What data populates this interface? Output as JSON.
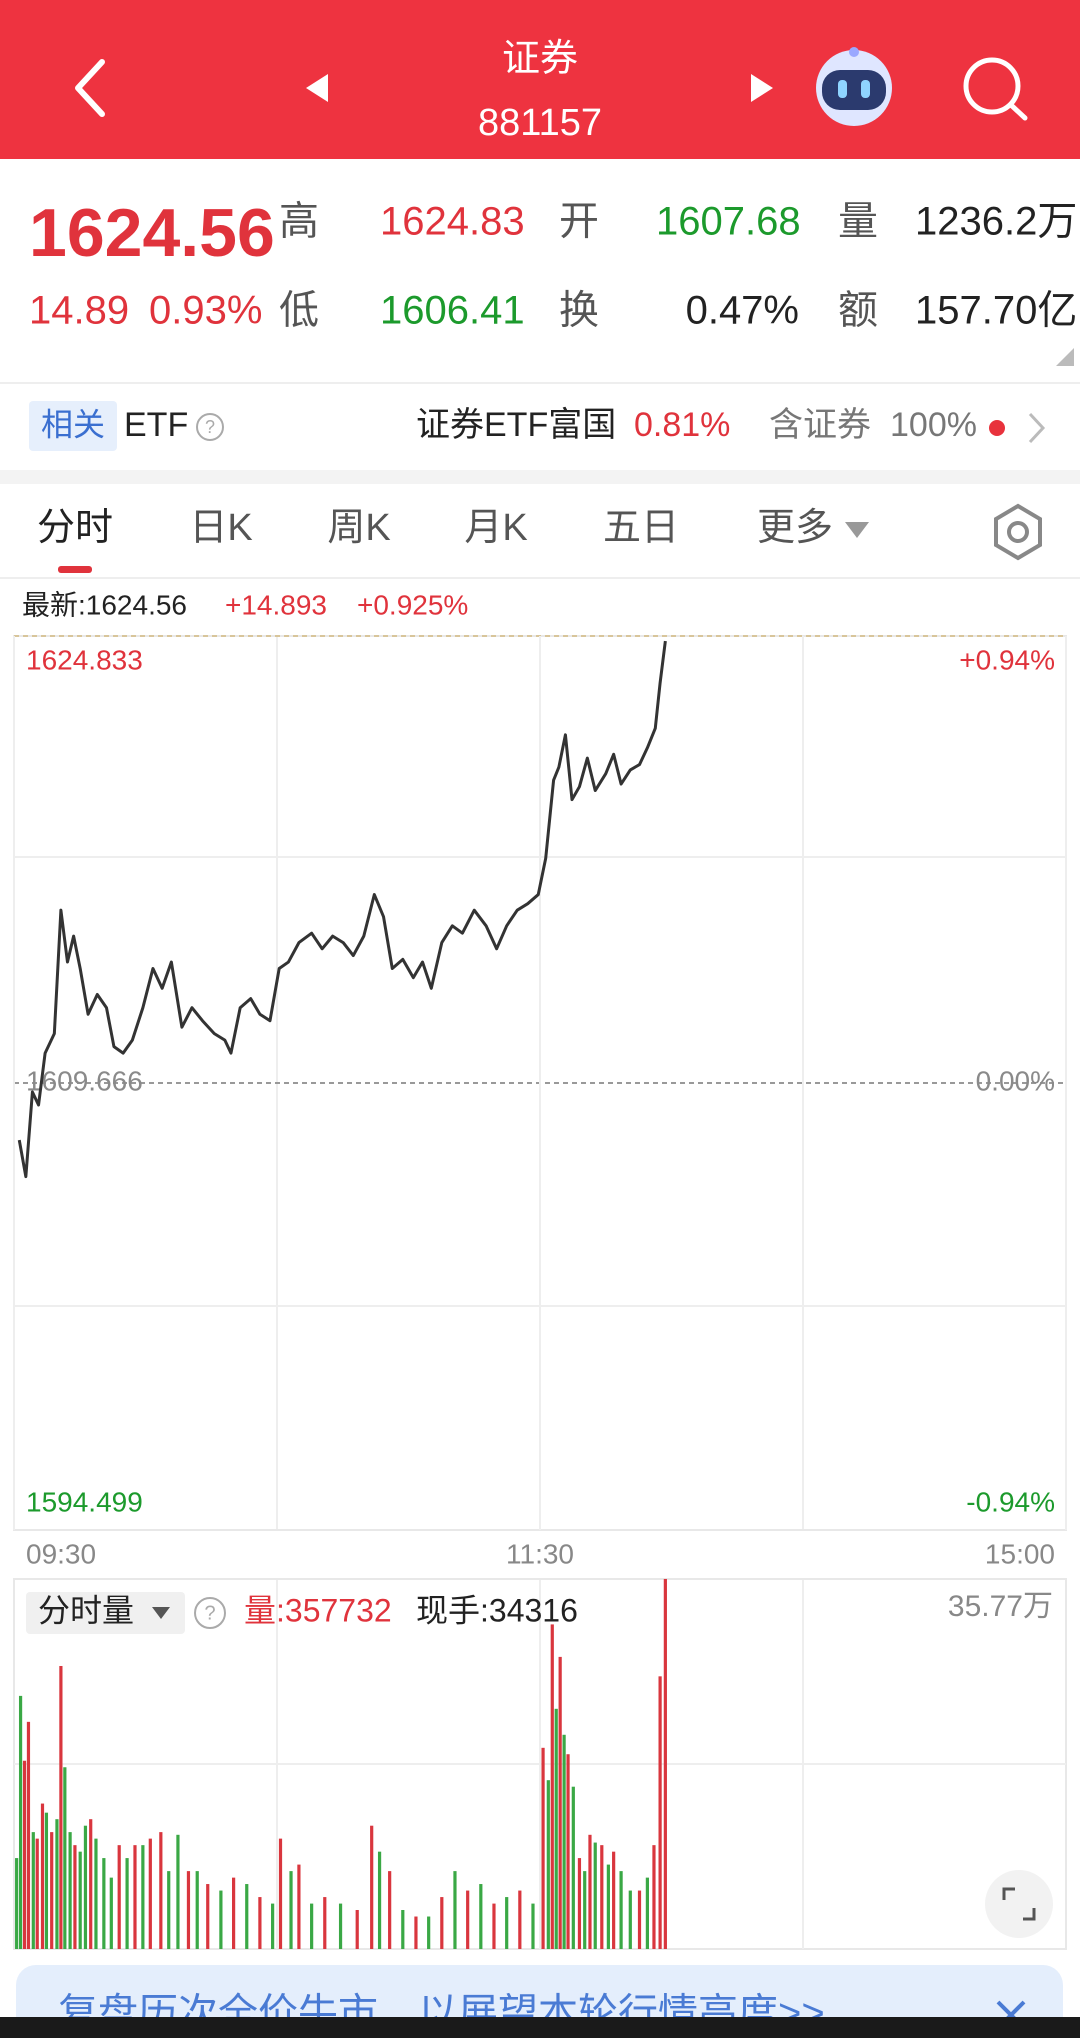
{
  "header": {
    "title": "证券",
    "code": "881157"
  },
  "quote": {
    "price": "1624.56",
    "change": "14.89",
    "change_pct": "0.93%",
    "fields": [
      {
        "label": "高",
        "value": "1624.83"
      },
      {
        "label": "开",
        "value": "1607.68"
      },
      {
        "label": "量",
        "value": "1236.2万"
      },
      {
        "label": "低",
        "value": "1606.41"
      },
      {
        "label": "换",
        "value": "0.47%"
      },
      {
        "label": "额",
        "value": "157.70亿"
      }
    ]
  },
  "related": {
    "tag": "相关",
    "label": "ETF",
    "name": "证券ETF富国",
    "change_pct": "0.81%",
    "holding_label": "含证券",
    "holding_pct": "100%"
  },
  "tabs": [
    "分时",
    "日K",
    "周K",
    "月K",
    "五日",
    "更多"
  ],
  "chart_data": [
    {
      "type": "line",
      "latest": "最新:1624.56",
      "change": "+14.893",
      "change_pct": "+0.925%",
      "color": "#333333",
      "x": [
        1.2,
        2.7,
        4.2,
        5.6,
        7.1,
        9.2,
        10.7,
        12.2,
        13.6,
        15.1,
        16.9,
        19.0,
        21.1,
        22.8,
        24.9,
        27.0,
        29.4,
        31.7,
        33.8,
        35.9,
        38.3,
        40.6,
        43.0,
        45.7,
        48.1,
        49.5,
        51.6,
        54.0,
        56.1,
        58.4,
        60.5,
        62.6,
        65.0,
        67.9,
        70.3,
        72.7,
        75.1,
        77.4,
        79.8,
        82.2,
        84.3,
        86.3,
        88.7,
        91.1,
        93.2,
        95.2,
        97.6,
        100.0,
        102.3,
        105.0,
        107.7,
        110.1,
        112.4,
        114.8,
        117.2,
        119.6,
        121.3,
        123.1,
        124.3,
        125.8,
        127.3,
        129.0,
        130.8,
        132.6,
        135.0,
        136.8,
        138.5,
        140.6,
        142.7,
        144.5,
        146.3,
        147.4,
        148.6
      ],
      "values": [
        1607.73,
        1606.49,
        1609.36,
        1608.92,
        1610.68,
        1611.34,
        1615.53,
        1613.77,
        1614.65,
        1613.55,
        1612.0,
        1612.67,
        1612.22,
        1610.9,
        1610.68,
        1611.12,
        1612.22,
        1613.55,
        1612.88,
        1613.77,
        1611.56,
        1612.22,
        1611.78,
        1611.34,
        1611.12,
        1610.68,
        1612.22,
        1612.53,
        1612.0,
        1611.78,
        1613.55,
        1613.77,
        1614.43,
        1614.75,
        1614.22,
        1614.65,
        1614.43,
        1613.99,
        1614.65,
        1616.06,
        1615.31,
        1613.55,
        1613.86,
        1613.24,
        1613.77,
        1612.88,
        1614.43,
        1615.0,
        1614.75,
        1615.53,
        1615.0,
        1614.22,
        1615.0,
        1615.53,
        1615.75,
        1616.06,
        1617.29,
        1619.94,
        1620.38,
        1621.48,
        1619.28,
        1619.72,
        1620.69,
        1619.59,
        1620.16,
        1620.82,
        1619.81,
        1620.29,
        1620.47,
        1621.04,
        1621.7,
        1623.24,
        1624.66
      ],
      "xlim": [
        0,
        240
      ],
      "xticks": [
        {
          "value": 0,
          "label": "09:30"
        },
        {
          "value": 120,
          "label": "11:30"
        },
        {
          "value": 240,
          "label": "15:00"
        }
      ],
      "ylim": [
        1594.499,
        1624.833
      ],
      "yticks": [
        1624.833,
        1609.666,
        1594.499
      ],
      "y2lim": [
        -0.94,
        0.94
      ],
      "y2ticks": [
        {
          "value": 0.94,
          "label": "+0.94%"
        },
        {
          "value": 0,
          "label": "0.00%"
        },
        {
          "value": -0.94,
          "label": "-0.94%"
        }
      ],
      "tick_colors": [
        "#e0333c",
        "#8a8a8a",
        "#1c9a2c"
      ]
    },
    {
      "type": "bar",
      "title": "分时量",
      "volume_label": "量:357732",
      "hand_label": "现手:34316",
      "up_color": "#d9363e",
      "down_color": "#3aa845",
      "x": [
        0.6,
        1.5,
        2.4,
        3.3,
        4.4,
        5.3,
        6.5,
        7.4,
        8.6,
        9.8,
        10.7,
        11.6,
        12.8,
        13.9,
        15.1,
        16.3,
        17.5,
        18.7,
        20.5,
        22.2,
        24.0,
        25.8,
        27.6,
        29.4,
        31.1,
        33.5,
        35.3,
        37.4,
        39.8,
        41.8,
        44.2,
        47.2,
        50.1,
        53.1,
        56.1,
        59.0,
        60.8,
        63.2,
        65.0,
        67.9,
        70.9,
        74.5,
        78.3,
        81.6,
        83.4,
        85.7,
        88.7,
        91.7,
        94.6,
        97.6,
        100.6,
        103.5,
        106.5,
        109.5,
        112.4,
        115.4,
        118.4,
        120.7,
        121.9,
        122.8,
        123.7,
        124.6,
        125.5,
        126.4,
        127.6,
        129.0,
        130.2,
        131.4,
        132.6,
        134.1,
        135.6,
        136.8,
        138.5,
        140.6,
        142.7,
        144.5,
        146.0,
        147.4,
        148.6
      ],
      "values": [
        87900,
        244700,
        182000,
        219600,
        113000,
        106700,
        140600,
        131800,
        113000,
        125500,
        273600,
        175700,
        113000,
        100400,
        94100,
        119200,
        125500,
        106700,
        87900,
        69000,
        100400,
        87900,
        100400,
        100400,
        106700,
        113000,
        75300,
        110400,
        75300,
        75300,
        62800,
        56500,
        69000,
        62800,
        50200,
        43900,
        106700,
        75300,
        81600,
        43900,
        50200,
        43900,
        37700,
        119200,
        94100,
        75300,
        37700,
        31400,
        31400,
        50200,
        75300,
        56500,
        62800,
        43900,
        50200,
        56500,
        43900,
        194500,
        163200,
        313800,
        232200,
        282400,
        207100,
        188300,
        156900,
        87900,
        75300,
        110400,
        102900,
        100400,
        81600,
        94100,
        75300,
        56500,
        56500,
        69000,
        100400,
        263600,
        357732
      ],
      "up": [
        false,
        false,
        true,
        true,
        false,
        true,
        true,
        false,
        true,
        false,
        true,
        false,
        false,
        true,
        false,
        false,
        true,
        false,
        false,
        false,
        true,
        false,
        true,
        false,
        true,
        true,
        false,
        false,
        true,
        false,
        true,
        false,
        true,
        false,
        true,
        false,
        true,
        false,
        true,
        false,
        true,
        false,
        true,
        true,
        false,
        true,
        false,
        true,
        false,
        true,
        false,
        true,
        false,
        true,
        false,
        true,
        false,
        true,
        false,
        true,
        false,
        true,
        false,
        true,
        false,
        true,
        false,
        true,
        false,
        true,
        false,
        true,
        false,
        false,
        true,
        false,
        true,
        true,
        true
      ],
      "xlim": [
        0,
        240
      ],
      "ylim": [
        0,
        357700
      ],
      "yticks": [
        {
          "value": 357700,
          "label": "35.77万"
        }
      ]
    }
  ],
  "banner": {
    "text": "复盘历次全价牛市，以展望本轮行情高度>>"
  }
}
